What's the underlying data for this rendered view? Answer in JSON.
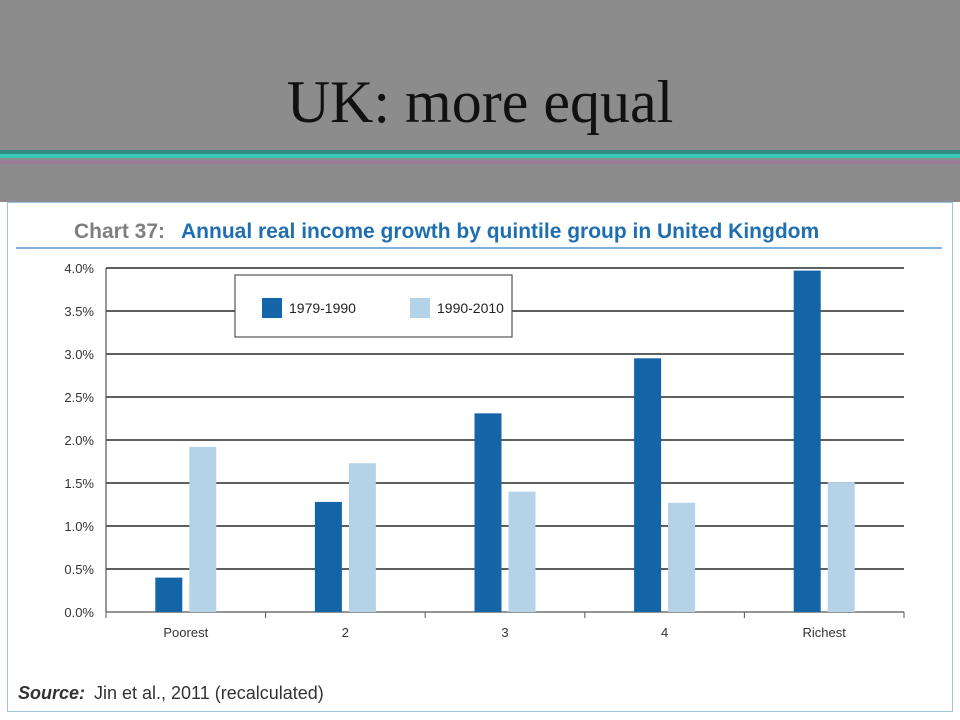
{
  "slide": {
    "title": "UK: more equal"
  },
  "chart_header": {
    "prefix": "Chart 37:",
    "title": "Annual real income growth by quintile group in United Kingdom"
  },
  "source": {
    "label": "Source:",
    "text": "Jin et al., 2011 (recalculated)"
  },
  "colors": {
    "series_1979_1990": "#1464a8",
    "series_1990_2010": "#b5d3e8",
    "header_text": "#1f6fb0",
    "header_prefix": "#7f7f7f",
    "rule": "#7fb2da",
    "gridline": "#2a2a2a"
  },
  "chart_data": {
    "type": "bar",
    "title": "Annual real income growth by quintile group in United Kingdom",
    "categories": [
      "Poorest",
      "2",
      "3",
      "4",
      "Richest"
    ],
    "series": [
      {
        "name": "1979-1990",
        "values": [
          0.4,
          1.28,
          2.31,
          2.95,
          3.97
        ]
      },
      {
        "name": "1990-2010",
        "values": [
          1.92,
          1.73,
          1.4,
          1.27,
          1.51
        ]
      }
    ],
    "y_ticks": [
      "0.0%",
      "0.5%",
      "1.0%",
      "1.5%",
      "2.0%",
      "2.5%",
      "3.0%",
      "3.5%",
      "4.0%"
    ],
    "ylim": [
      0,
      4.0
    ],
    "xlabel": "",
    "ylabel": "",
    "grid": true,
    "legend_position": "top-left"
  }
}
